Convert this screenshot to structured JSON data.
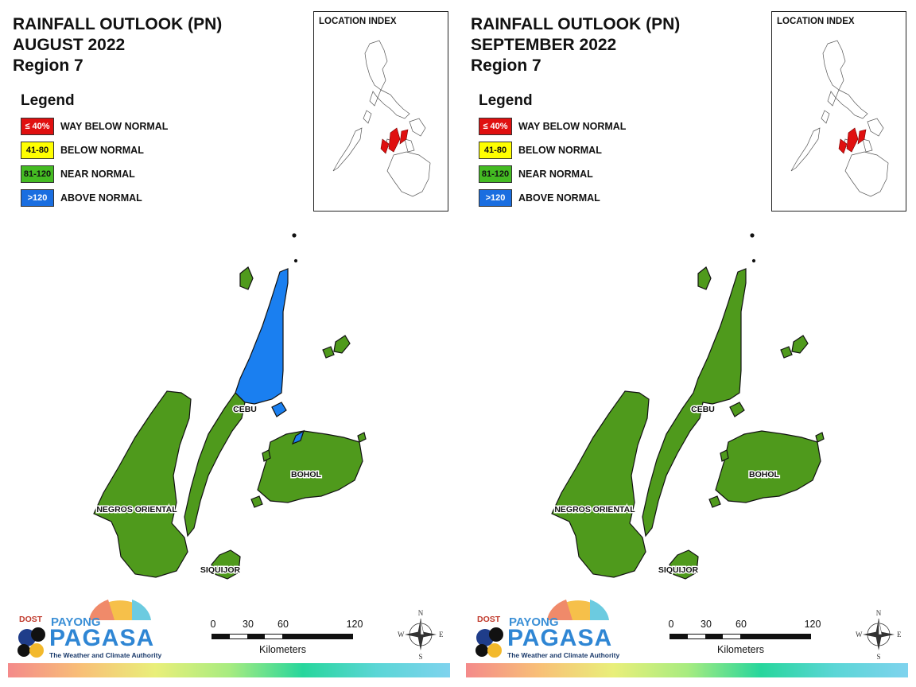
{
  "panels": [
    {
      "title": "RAINFALL OUTLOOK (PN)",
      "period": "AUGUST 2022",
      "region": "Region 7",
      "index_title": "LOCATION INDEX",
      "province_categories": {
        "CEBU": "mixed: ABOVE NORMAL (north) / NEAR NORMAL (south)",
        "BOHOL": "NEAR NORMAL",
        "NEGROS ORIENTAL": "NEAR NORMAL",
        "SIQUIJOR": "NEAR NORMAL"
      }
    },
    {
      "title": "RAINFALL OUTLOOK (PN)",
      "period": "SEPTEMBER 2022",
      "region": "Region 7",
      "index_title": "LOCATION INDEX",
      "province_categories": {
        "CEBU": "NEAR NORMAL",
        "BOHOL": "NEAR NORMAL",
        "NEGROS ORIENTAL": "NEAR NORMAL",
        "SIQUIJOR": "NEAR NORMAL"
      }
    }
  ],
  "legend": {
    "title": "Legend",
    "items": [
      {
        "range": "≤ 40%",
        "label": "WAY BELOW NORMAL",
        "color": "#e01010",
        "text_color": "#ffffff"
      },
      {
        "range": "41-80",
        "label": "BELOW NORMAL",
        "color": "#ffff00",
        "text_color": "#111111"
      },
      {
        "range": "81-120",
        "label": "NEAR NORMAL",
        "color": "#44bb22",
        "text_color": "#111111"
      },
      {
        "range": ">120",
        "label": "ABOVE NORMAL",
        "color": "#1a6ee0",
        "text_color": "#ffffff"
      }
    ]
  },
  "places": {
    "cebu": "CEBU",
    "bohol": "BOHOL",
    "negros": "NEGROS ORIENTAL",
    "siquijor": "SIQUIJOR"
  },
  "colors": {
    "near_normal": "#4f9a1c",
    "above_normal": "#1a7ff0",
    "index_highlight": "#e01010"
  },
  "logo": {
    "dost": "DOST",
    "payong": "PAYONG",
    "pagasa": "PAGASA",
    "tagline": "The Weather and Climate Authority"
  },
  "scale": {
    "ticks": [
      "0",
      "30",
      "60",
      "120"
    ],
    "unit": "Kilometers"
  },
  "compass": {
    "n": "N",
    "e": "E",
    "s": "S",
    "w": "W"
  }
}
